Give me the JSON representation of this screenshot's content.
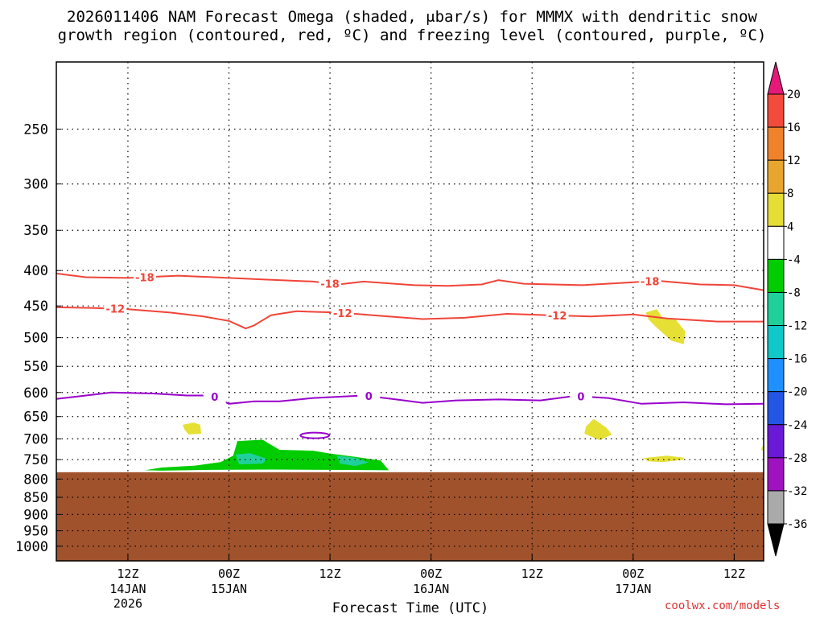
{
  "title": {
    "line1": "2026011406 NAM Forecast Omega (shaded, μbar/s) for MMMX with dendritic snow",
    "line2": "growth region (contoured, red, ºC) and freezing level (contoured, purple, ºC)"
  },
  "credit": "coolwx.com/models",
  "chart_data": {
    "type": "time-height cross section",
    "xlabel": "Forecast Time (UTC)",
    "ylabel": "",
    "x_range_hours": [
      -8.5,
      75.5
    ],
    "x_ticks": [
      {
        "hour": 0,
        "label1": "12Z",
        "label2": "14JAN",
        "label3": "2026"
      },
      {
        "hour": 12,
        "label1": "00Z",
        "label2": "15JAN",
        "label3": ""
      },
      {
        "hour": 24,
        "label1": "12Z",
        "label2": "",
        "label3": ""
      },
      {
        "hour": 36,
        "label1": "00Z",
        "label2": "16JAN",
        "label3": ""
      },
      {
        "hour": 48,
        "label1": "12Z",
        "label2": "",
        "label3": ""
      },
      {
        "hour": 60,
        "label1": "00Z",
        "label2": "17JAN",
        "label3": ""
      },
      {
        "hour": 72,
        "label1": "12Z",
        "label2": "",
        "label3": ""
      }
    ],
    "y_scale": "log pressure",
    "y_range_hpa": [
      1050,
      200
    ],
    "y_ticks": [
      250,
      300,
      350,
      400,
      450,
      500,
      550,
      600,
      650,
      700,
      750,
      800,
      850,
      900,
      950,
      1000
    ],
    "grid": true,
    "terrain_pressure_hpa": 782,
    "terrain_color": "#a0522d",
    "contours": [
      {
        "name": "-18",
        "color": "#f04438",
        "label": "-18",
        "label_hours": [
          2,
          24,
          62
        ],
        "points": [
          [
            -8.5,
            404
          ],
          [
            -5,
            409
          ],
          [
            0,
            410
          ],
          [
            6,
            407
          ],
          [
            12,
            410
          ],
          [
            16,
            412
          ],
          [
            22,
            415
          ],
          [
            25,
            419
          ],
          [
            28,
            415
          ],
          [
            34,
            420
          ],
          [
            38,
            421
          ],
          [
            42,
            419
          ],
          [
            44,
            413
          ],
          [
            47,
            418
          ],
          [
            54,
            420
          ],
          [
            60,
            416
          ],
          [
            63,
            414
          ],
          [
            68,
            419
          ],
          [
            72,
            420
          ],
          [
            75.5,
            427
          ]
        ]
      },
      {
        "name": "-12",
        "color": "#f04438",
        "label": "-12",
        "label_hours": [
          -1.5,
          25.5,
          51
        ],
        "points": [
          [
            -8.5,
            452
          ],
          [
            -4,
            453
          ],
          [
            0,
            455
          ],
          [
            5,
            460
          ],
          [
            9,
            466
          ],
          [
            12,
            473
          ],
          [
            14,
            485
          ],
          [
            15,
            480
          ],
          [
            17,
            464
          ],
          [
            20,
            458
          ],
          [
            25,
            460
          ],
          [
            30,
            465
          ],
          [
            35,
            470
          ],
          [
            40,
            468
          ],
          [
            45,
            462
          ],
          [
            50,
            464
          ],
          [
            55,
            466
          ],
          [
            60,
            463
          ],
          [
            64,
            469
          ],
          [
            70,
            474
          ],
          [
            75.5,
            474
          ]
        ]
      },
      {
        "name": "0",
        "color": "#9900cc",
        "label": "0",
        "label_hours": [
          10.3,
          28.6,
          53.8
        ],
        "points": [
          [
            -8.5,
            613
          ],
          [
            -6,
            608
          ],
          [
            -2,
            600
          ],
          [
            3,
            602
          ],
          [
            7,
            606
          ],
          [
            10,
            606
          ],
          [
            12,
            623
          ],
          [
            15,
            618
          ],
          [
            18,
            618
          ],
          [
            22,
            611
          ],
          [
            28,
            606
          ],
          [
            31,
            612
          ],
          [
            35,
            621
          ],
          [
            39,
            616
          ],
          [
            44,
            614
          ],
          [
            49,
            616
          ],
          [
            53,
            607
          ],
          [
            57,
            611
          ],
          [
            61,
            623
          ],
          [
            66,
            620
          ],
          [
            71,
            624
          ],
          [
            75.5,
            623
          ]
        ]
      }
    ],
    "small_contour": {
      "color": "#9900cc",
      "center_hour": 22.2,
      "center_hpa": 692
    },
    "omega_shading": [
      {
        "color": "#00cc00",
        "range": [
          -8,
          -4
        ],
        "polygon": [
          [
            2,
            777
          ],
          [
            4,
            770
          ],
          [
            8,
            765
          ],
          [
            11,
            756
          ],
          [
            12.5,
            740
          ],
          [
            13,
            705
          ],
          [
            16,
            702
          ],
          [
            18,
            726
          ],
          [
            22,
            728
          ],
          [
            24,
            735
          ],
          [
            27,
            743
          ],
          [
            30,
            752
          ],
          [
            31,
            777
          ],
          [
            24,
            776
          ],
          [
            17,
            775
          ],
          [
            10,
            776
          ],
          [
            4,
            778
          ]
        ]
      },
      {
        "color": "#1fd09a",
        "range": [
          -12,
          -8
        ],
        "polygon": [
          [
            12.8,
            737
          ],
          [
            14.5,
            734
          ],
          [
            16.5,
            748
          ],
          [
            16,
            760
          ],
          [
            13.2,
            762
          ]
        ]
      },
      {
        "color": "#1fd09a",
        "range": [
          -12,
          -8
        ],
        "polygon": [
          [
            24.8,
            740
          ],
          [
            27,
            745
          ],
          [
            28.6,
            757
          ],
          [
            27,
            766
          ],
          [
            25.2,
            760
          ]
        ]
      },
      {
        "color": "#e6e035",
        "range": [
          4,
          8
        ],
        "polygon": [
          [
            6.5,
            668
          ],
          [
            7.8,
            663
          ],
          [
            8.6,
            668
          ],
          [
            8.7,
            688
          ],
          [
            7.2,
            690
          ],
          [
            6.7,
            678
          ]
        ]
      },
      {
        "color": "#e6e035",
        "range": [
          4,
          8
        ],
        "polygon": [
          [
            54.4,
            672
          ],
          [
            55.3,
            655
          ],
          [
            56.8,
            674
          ],
          [
            57.5,
            690
          ],
          [
            56,
            703
          ],
          [
            54.2,
            688
          ]
        ]
      },
      {
        "color": "#e6e035",
        "range": [
          4,
          8
        ],
        "polygon": [
          [
            61.5,
            460
          ],
          [
            62.8,
            455
          ],
          [
            63.6,
            470
          ],
          [
            65,
            470
          ],
          [
            66.2,
            490
          ],
          [
            66,
            511
          ],
          [
            64.5,
            505
          ],
          [
            62.5,
            480
          ],
          [
            61.8,
            470
          ]
        ]
      },
      {
        "color": "#e6e035",
        "range": [
          4,
          8
        ],
        "polygon": [
          [
            61.2,
            746
          ],
          [
            64,
            740
          ],
          [
            66,
            745
          ],
          [
            66,
            750
          ],
          [
            63.5,
            756
          ],
          [
            61.8,
            754
          ]
        ]
      },
      {
        "color": "#e6e035",
        "range": [
          4,
          8
        ],
        "polygon": [
          [
            75.3,
            719
          ],
          [
            75.5,
            716
          ],
          [
            75.5,
            728
          ],
          [
            75.2,
            726
          ]
        ]
      }
    ],
    "colorbar": {
      "unit": "μbar/s",
      "labels": [
        "20",
        "16",
        "12",
        "8",
        "4",
        "-4",
        "-8",
        "-12",
        "-16",
        "-20",
        "-24",
        "-28",
        "-32",
        "-36"
      ],
      "bins": [
        {
          "range": [
            16,
            20
          ],
          "color": "#f24b3c"
        },
        {
          "range": [
            12,
            16
          ],
          "color": "#f0822c"
        },
        {
          "range": [
            8,
            12
          ],
          "color": "#e9a62e"
        },
        {
          "range": [
            4,
            8
          ],
          "color": "#e6dd35"
        },
        {
          "range": [
            -4,
            4
          ],
          "color": "#ffffff"
        },
        {
          "range": [
            -8,
            -4
          ],
          "color": "#00cc00"
        },
        {
          "range": [
            -12,
            -8
          ],
          "color": "#1fd09a"
        },
        {
          "range": [
            -16,
            -12
          ],
          "color": "#10c8c8"
        },
        {
          "range": [
            -20,
            -16
          ],
          "color": "#1e90ff"
        },
        {
          "range": [
            -24,
            -20
          ],
          "color": "#2456e6"
        },
        {
          "range": [
            -28,
            -24
          ],
          "color": "#6a19d6"
        },
        {
          "range": [
            -32,
            -28
          ],
          "color": "#9f12c0"
        },
        {
          "range": [
            -36,
            -32
          ],
          "color": "#aaaaaa"
        }
      ],
      "top_arrow_color": "#e6197a",
      "bottom_arrow_color": "#000000"
    }
  }
}
